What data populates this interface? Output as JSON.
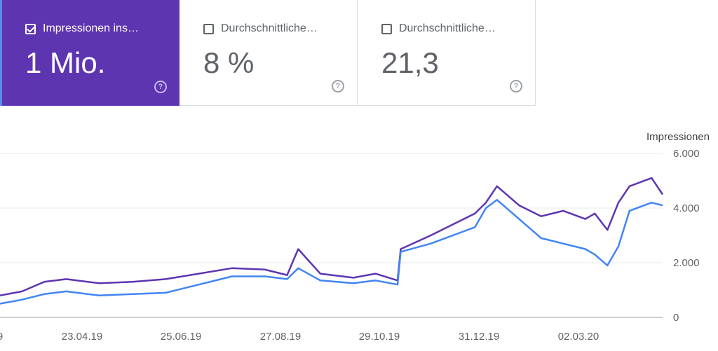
{
  "cards": [
    {
      "label": "Impressionen ins…",
      "value": "1 Mio.",
      "checked": true
    },
    {
      "label": "Durchschnittliche…",
      "value": "8 %",
      "checked": false
    },
    {
      "label": "Durchschnittliche…",
      "value": "21,3",
      "checked": false
    }
  ],
  "help_glyph": "?",
  "chart_data": {
    "type": "line",
    "ylabel": "Impressionen",
    "yticks": [
      "6.000",
      "4.000",
      "2.000",
      "0"
    ],
    "ylim": [
      0,
      6000
    ],
    "xtick_labels": [
      "9",
      "23.04.19",
      "25.06.19",
      "27.08.19",
      "29.10.19",
      "31.12.19",
      "02.03.20"
    ],
    "grid": true,
    "colors": {
      "series1": "#5e35b1",
      "series2": "#4285f4"
    },
    "x": [
      "2019-02-19",
      "2019-03-05",
      "2019-03-19",
      "2019-04-02",
      "2019-04-23",
      "2019-05-14",
      "2019-06-04",
      "2019-06-25",
      "2019-07-16",
      "2019-08-06",
      "2019-08-20",
      "2019-08-27",
      "2019-09-10",
      "2019-10-01",
      "2019-10-15",
      "2019-10-29",
      "2019-10-31",
      "2019-11-19",
      "2019-12-03",
      "2019-12-17",
      "2019-12-24",
      "2019-12-31",
      "2020-01-14",
      "2020-01-28",
      "2020-02-11",
      "2020-02-25",
      "2020-03-02",
      "2020-03-10",
      "2020-03-17",
      "2020-03-24",
      "2020-04-07",
      "2020-04-14"
    ],
    "series": [
      {
        "values": [
          800,
          950,
          1300,
          1400,
          1250,
          1300,
          1400,
          1600,
          1800,
          1750,
          1550,
          2500,
          1600,
          1450,
          1600,
          1350,
          2500,
          3000,
          3400,
          3800,
          4200,
          4800,
          4100,
          3700,
          3900,
          3600,
          3800,
          3200,
          4200,
          4800,
          5100,
          4500
        ]
      },
      {
        "values": [
          500,
          650,
          850,
          950,
          800,
          850,
          900,
          1200,
          1500,
          1500,
          1400,
          1800,
          1350,
          1250,
          1350,
          1200,
          2400,
          2700,
          3000,
          3300,
          4000,
          4300,
          3600,
          2900,
          2700,
          2500,
          2300,
          1900,
          2600,
          3900,
          4200,
          4100
        ]
      }
    ]
  }
}
